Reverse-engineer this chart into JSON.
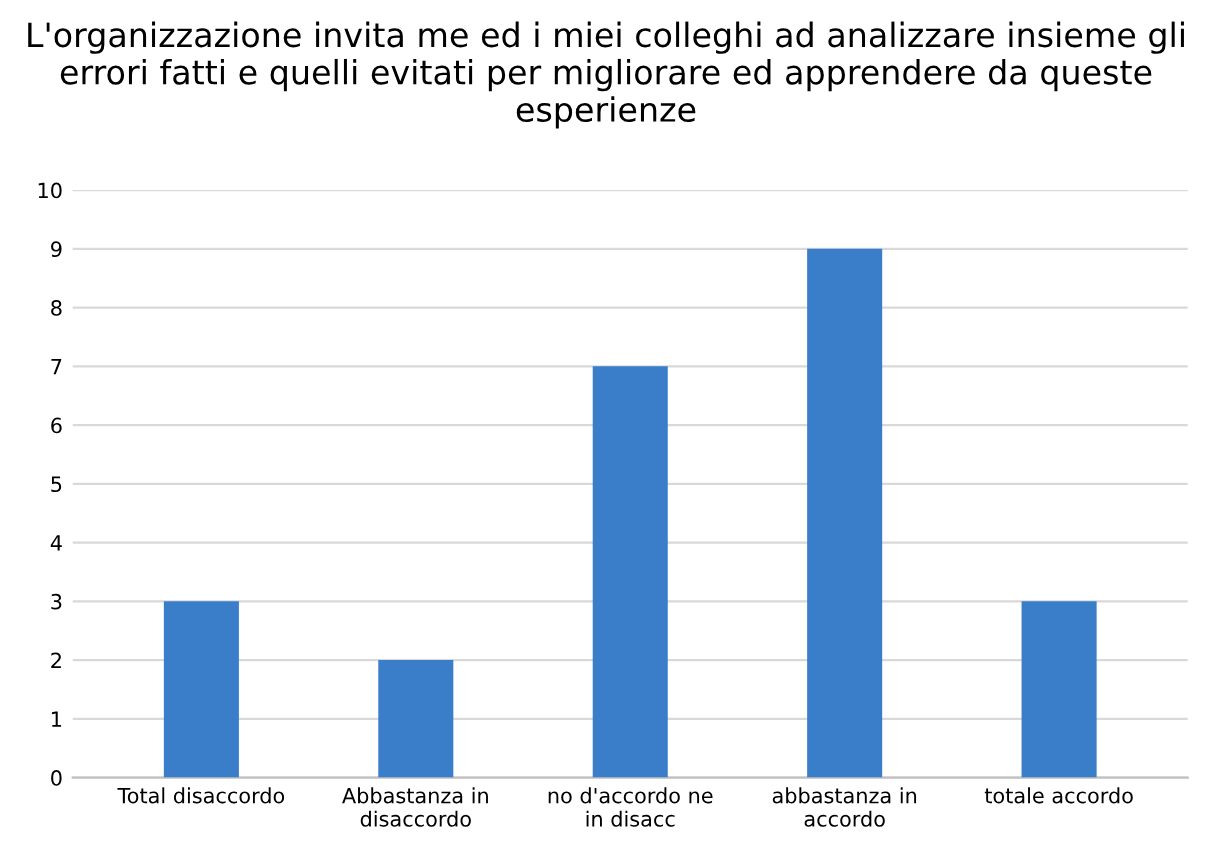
{
  "chart_data": {
    "type": "bar",
    "title": "L'organizzazione invita me ed i miei colleghi ad analizzare insieme gli errori fatti e quelli evitati per migliorare ed apprendere da queste esperienze",
    "categories": [
      "Total disaccordo",
      "Abbastanza in\ndisaccordo",
      "no d'accordo ne\nin disacc",
      "abbastanza in\naccordo",
      "totale accordo"
    ],
    "values": [
      3,
      2,
      7,
      9,
      3
    ],
    "color": "#3a7dc9",
    "ylim": [
      0,
      10
    ],
    "yticks": [
      0,
      1,
      2,
      3,
      4,
      5,
      6,
      7,
      8,
      9,
      10
    ],
    "grid": "y"
  }
}
